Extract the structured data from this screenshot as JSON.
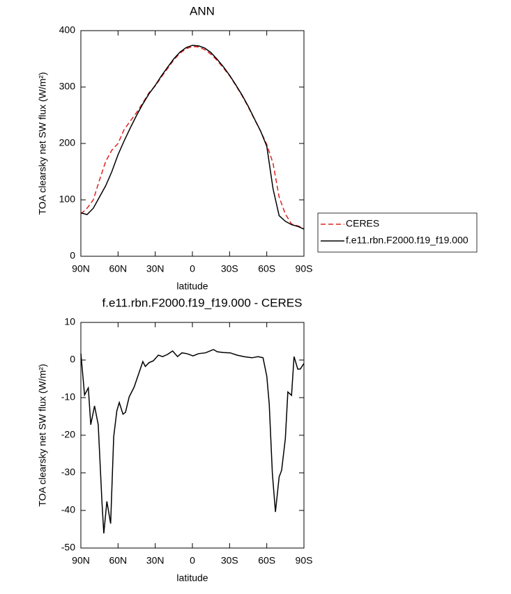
{
  "chart_data": [
    {
      "type": "line",
      "title": "ANN",
      "x_label": "latitude",
      "y_label": "TOA clearsky net SW flux (W/m²)",
      "x": [
        90,
        85,
        80,
        75,
        70,
        65,
        60,
        55,
        50,
        45,
        40,
        35,
        30,
        25,
        20,
        15,
        10,
        5,
        0,
        -5,
        -10,
        -15,
        -20,
        -25,
        -30,
        -35,
        -40,
        -45,
        -50,
        -55,
        -60,
        -65,
        -70,
        -75,
        -80,
        -85,
        -90
      ],
      "series": [
        {
          "name": "CERES",
          "color": "#e0211f",
          "line_style": "dashed",
          "values": [
            75,
            85,
            100,
            135,
            168,
            188,
            200,
            225,
            240,
            255,
            272,
            290,
            302,
            318,
            333,
            348,
            360,
            368,
            372,
            371,
            366,
            358,
            347,
            334,
            320,
            303,
            285,
            265,
            243,
            222,
            198,
            165,
            105,
            75,
            57,
            54,
            50
          ]
        },
        {
          "name": "f.e11.rbn.F2000.f19_f19.000",
          "color": "#000000",
          "line_style": "solid",
          "values": [
            77,
            74,
            85,
            105,
            125,
            150,
            180,
            205,
            228,
            250,
            270,
            288,
            303,
            320,
            335,
            350,
            362,
            370,
            374,
            373,
            369,
            361,
            349,
            336,
            321,
            304,
            286,
            266,
            244,
            222,
            195,
            120,
            72,
            62,
            56,
            53,
            48
          ]
        }
      ],
      "xlim": [
        90,
        -90
      ],
      "xticks": [
        {
          "value": 90,
          "label": "90N"
        },
        {
          "value": 60,
          "label": "60N"
        },
        {
          "value": 30,
          "label": "30N"
        },
        0,
        {
          "value": -30,
          "label": "30S"
        },
        {
          "value": -60,
          "label": "60S"
        },
        {
          "value": -90,
          "label": "90S"
        }
      ],
      "ylim": [
        0,
        400
      ],
      "yticks": [
        0,
        100,
        200,
        300,
        400
      ],
      "legend": "right"
    },
    {
      "type": "line",
      "title": "f.e11.rbn.F2000.f19_f19.000 - CERES",
      "x_label": "latitude",
      "y_label": "TOA clearsky net SW flux (W/m²)",
      "x": [
        90,
        87,
        84,
        82,
        79,
        76,
        73,
        71.5,
        69,
        66,
        63.5,
        61,
        59,
        56,
        54,
        51,
        47,
        40,
        38,
        35,
        31.5,
        27.5,
        24,
        20,
        16,
        12,
        8.5,
        4.5,
        -0.5,
        -5,
        -10.5,
        -17,
        -20,
        -25,
        -30.5,
        -36,
        -41.5,
        -48,
        -53,
        -57,
        -60,
        -62,
        -64.5,
        -67,
        -70,
        -72,
        -75,
        -77,
        -80,
        -82,
        -85,
        -87,
        -90
      ],
      "values": [
        1.7,
        -9.3,
        -7.4,
        -17.2,
        -12.2,
        -17.2,
        -37.6,
        -46.1,
        -37.6,
        -43.5,
        -20.4,
        -13.5,
        -11.3,
        -14.4,
        -13.9,
        -9.8,
        -7.2,
        -0.4,
        -1.7,
        -0.7,
        -0.2,
        1.3,
        0.9,
        1.5,
        2.4,
        0.9,
        1.9,
        1.7,
        1.1,
        1.7,
        1.9,
        2.8,
        2.2,
        2.0,
        1.9,
        1.3,
        0.9,
        0.6,
        0.9,
        0.6,
        -4.3,
        -11.7,
        -30.2,
        -40.4,
        -31.1,
        -29.3,
        -20.9,
        -8.5,
        -9.4,
        0.9,
        -2.4,
        -2.4,
        -0.9
      ],
      "color": "#000000",
      "xlim": [
        90,
        -90
      ],
      "xticks": [
        {
          "value": 90,
          "label": "90N"
        },
        {
          "value": 60,
          "label": "60N"
        },
        {
          "value": 30,
          "label": "30N"
        },
        0,
        {
          "value": -30,
          "label": "30S"
        },
        {
          "value": -60,
          "label": "60S"
        },
        {
          "value": -90,
          "label": "90S"
        }
      ],
      "ylim": [
        -50,
        10
      ],
      "yticks": [
        -50,
        -40,
        -30,
        -20,
        -10,
        0,
        10
      ]
    }
  ]
}
